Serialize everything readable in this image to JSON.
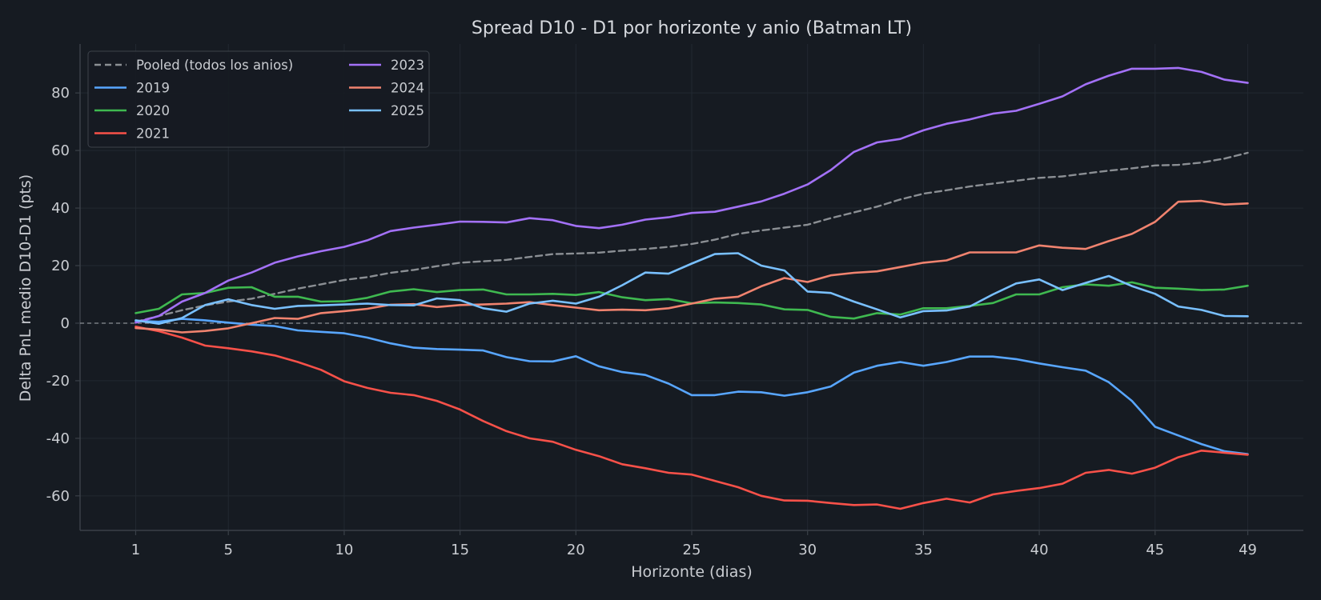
{
  "chart_data": {
    "type": "line",
    "title": "Spread D10 - D1 por horizonte y anio (Batman LT)",
    "xlabel": "Horizonte (dias)",
    "ylabel": "Delta PnL medio D10-D1 (pts)",
    "xlim": [
      -1.4,
      51.4
    ],
    "ylim": [
      -72,
      97
    ],
    "x_ticks": [
      1,
      5,
      10,
      15,
      20,
      25,
      30,
      35,
      40,
      45,
      49
    ],
    "y_ticks": [
      -60,
      -40,
      -20,
      0,
      20,
      40,
      60,
      80
    ],
    "y_tick_labels": [
      "-60",
      "-40",
      "-20",
      "0",
      "20",
      "40",
      "60",
      "80"
    ],
    "grid": true,
    "legend_position": "top-left",
    "zero_line": true,
    "colors": {
      "background": "#161b22",
      "grid": "#222831",
      "spine": "#3a4048",
      "zero_line": "#8b9096"
    },
    "x": [
      1,
      2,
      3,
      4,
      5,
      6,
      7,
      8,
      9,
      10,
      11,
      12,
      13,
      14,
      15,
      16,
      17,
      18,
      19,
      20,
      21,
      22,
      23,
      24,
      25,
      26,
      27,
      28,
      29,
      30,
      31,
      32,
      33,
      34,
      35,
      36,
      37,
      38,
      39,
      40,
      41,
      42,
      43,
      44,
      45,
      46,
      47,
      48,
      49
    ],
    "series": [
      {
        "name": "Pooled (todos los anios)",
        "color": "#8b8f94",
        "dashed": true,
        "values": [
          0.5,
          2.5,
          4.5,
          6.2,
          7.5,
          8.5,
          10.2,
          12,
          13.5,
          15,
          16,
          17.5,
          18.5,
          19.8,
          21,
          21.5,
          22,
          23,
          24,
          24.2,
          24.5,
          25.2,
          25.8,
          26.5,
          27.5,
          29,
          31,
          32.2,
          33.2,
          34.2,
          36.5,
          38.5,
          40.5,
          43,
          45,
          46.2,
          47.5,
          48.5,
          49.5,
          50.5,
          51,
          52,
          53,
          53.8,
          54.8,
          55,
          55.8,
          57.2,
          59.2
        ]
      },
      {
        "name": "2019",
        "color": "#58a6ff",
        "dashed": false,
        "values": [
          0.8,
          0.5,
          1.5,
          1,
          0.2,
          -0.5,
          -1,
          -2.5,
          -3,
          -3.5,
          -5,
          -7,
          -8.5,
          -9,
          -9.2,
          -9.5,
          -11.8,
          -13.2,
          -13.3,
          -11.5,
          -15,
          -17,
          -18,
          -21,
          -25,
          -25,
          -23.8,
          -24,
          -25.2,
          -24,
          -22,
          -17.2,
          -14.8,
          -13.5,
          -14.8,
          -13.5,
          -11.6,
          -11.6,
          -12.5,
          -14,
          -15.3,
          -16.5,
          -20.5,
          -27,
          -36,
          -39,
          -42,
          -44.5,
          -45.5
        ]
      },
      {
        "name": "2020",
        "color": "#3fb950",
        "dashed": false,
        "values": [
          3.5,
          5,
          10,
          10.5,
          12.3,
          12.5,
          9.2,
          9.2,
          7.5,
          7.6,
          8.8,
          11,
          11.8,
          10.8,
          11.5,
          11.7,
          10,
          10,
          10.2,
          9.8,
          10.8,
          9,
          8,
          8.4,
          6.9,
          7.2,
          7,
          6.5,
          4.8,
          4.6,
          2.2,
          1.6,
          3.5,
          3,
          5.2,
          5.2,
          6,
          7,
          10,
          10,
          12.5,
          13.5,
          13,
          14.2,
          12.3,
          12,
          11.5,
          11.7,
          13
        ]
      },
      {
        "name": "2021",
        "color": "#f85149",
        "dashed": false,
        "values": [
          -1.2,
          -2.8,
          -5,
          -7.8,
          -8.7,
          -9.8,
          -11.2,
          -13.5,
          -16.2,
          -20.2,
          -22.5,
          -24.2,
          -25,
          -27,
          -30,
          -34,
          -37.5,
          -40,
          -41.2,
          -44,
          -46.2,
          -49,
          -50.4,
          -52,
          -52.6,
          -54.8,
          -57,
          -60,
          -61.6,
          -61.7,
          -62.5,
          -63.2,
          -63,
          -64.5,
          -62.5,
          -61,
          -62.3,
          -59.5,
          -58.3,
          -57.3,
          -55.8,
          -52,
          -51,
          -52.3,
          -50.2,
          -46.6,
          -44.3,
          -45,
          -45.7
        ]
      },
      {
        "name": "2023",
        "color": "#a371f7",
        "dashed": false,
        "values": [
          0.2,
          2.5,
          7.5,
          10.5,
          14.8,
          17.6,
          21,
          23.2,
          25,
          26.5,
          28.8,
          32,
          33.2,
          34.2,
          35.3,
          35.2,
          35,
          36.5,
          35.8,
          33.8,
          33,
          34.2,
          36,
          36.8,
          38.3,
          38.7,
          40.5,
          42.3,
          45,
          48.2,
          53.2,
          59.5,
          62.8,
          64,
          67,
          69.3,
          70.8,
          72.8,
          73.8,
          76.2,
          78.8,
          83,
          86,
          88.4,
          88.4,
          88.7,
          87.3,
          84.6,
          83.5
        ]
      },
      {
        "name": "2024",
        "color": "#f0836f",
        "dashed": false,
        "values": [
          -1.7,
          -2.2,
          -3.2,
          -2.7,
          -1.8,
          0,
          1.8,
          1.5,
          3.5,
          4.2,
          5,
          6.4,
          6.6,
          5.6,
          6.3,
          6.5,
          6.8,
          7.3,
          6.3,
          5.4,
          4.5,
          4.7,
          4.5,
          5.2,
          6.8,
          8.5,
          9.2,
          12.8,
          15.7,
          14.3,
          16.6,
          17.5,
          18,
          19.5,
          21,
          21.8,
          24.6,
          24.6,
          24.6,
          27,
          26.2,
          25.8,
          28.5,
          31,
          35.2,
          42.2,
          42.5,
          41.2,
          41.6
        ]
      },
      {
        "name": "2025",
        "color": "#79c0ff",
        "dashed": false,
        "values": [
          1,
          -0.2,
          1.8,
          6.3,
          8.3,
          6.3,
          5,
          6,
          6.2,
          6.5,
          6.8,
          6.3,
          6.2,
          8.6,
          8,
          5.2,
          4,
          6.8,
          7.8,
          6.8,
          9.2,
          13.2,
          17.6,
          17.2,
          20.7,
          24,
          24.3,
          20,
          18.3,
          11,
          10.5,
          7.5,
          4.8,
          2,
          4.2,
          4.4,
          5.8,
          10,
          13.8,
          15.2,
          11.5,
          14,
          16.4,
          12.9,
          10.2,
          5.8,
          4.6,
          2.5,
          2.4
        ]
      }
    ]
  }
}
